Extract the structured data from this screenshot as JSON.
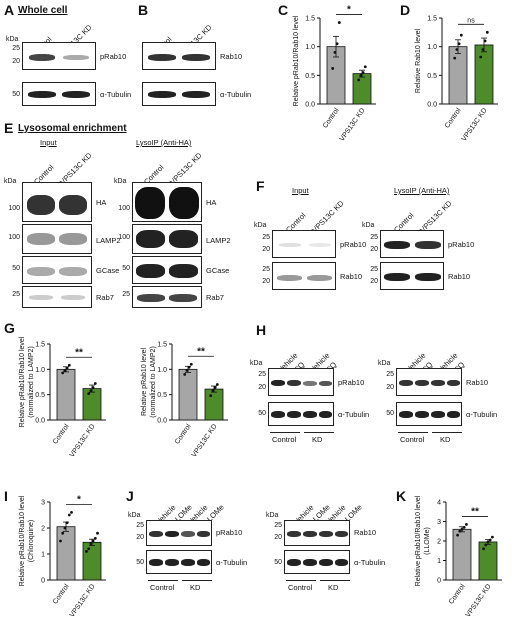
{
  "panels": {
    "A": {
      "letter": "A",
      "title": "Whole cell",
      "lanes": [
        "Control",
        "VPS13C KD"
      ],
      "kda_label": "kDa",
      "blots": [
        {
          "markers": [
            "25",
            "20"
          ],
          "label": "pRab10"
        },
        {
          "markers": [
            "50"
          ],
          "label": "α-Tubulin"
        }
      ]
    },
    "B": {
      "letter": "B",
      "lanes": [
        "Control",
        "VPS13C KD"
      ],
      "blots": [
        {
          "label": "Rab10"
        },
        {
          "label": "α-Tubulin"
        }
      ]
    },
    "C": {
      "letter": "C",
      "ylabel": "Relative pRab10/Rab10 level",
      "sig": "*"
    },
    "D": {
      "letter": "D",
      "ylabel": "Relative Rab10 level",
      "sig": "ns"
    },
    "E": {
      "letter": "E",
      "title": "Lysosomal enrichment",
      "input_title": "Input",
      "ip_title": "LysoIP (Anti-HA)",
      "lanes": [
        "Control",
        "VPS13C KD"
      ],
      "kda_label": "kDa",
      "blots": [
        {
          "marker": "100",
          "label": "HA"
        },
        {
          "marker": "100",
          "label": "LAMP2"
        },
        {
          "marker": "50",
          "label": "GCase"
        },
        {
          "marker": "25",
          "label": "Rab7"
        }
      ]
    },
    "F": {
      "letter": "F",
      "input_title": "Input",
      "ip_title": "LysoIP (Anti-HA)",
      "lanes": [
        "Control",
        "VPS13C KD"
      ],
      "kda_label": "kDa",
      "blots": [
        {
          "markers": [
            "25",
            "20"
          ],
          "label": "pRab10"
        },
        {
          "markers": [
            "25",
            "20"
          ],
          "label": "Rab10"
        }
      ]
    },
    "G": {
      "letter": "G",
      "ylabel1": "Relative pRab10/Rab10 level",
      "ylabel1b": "(normalized to LAMP2)",
      "ylabel2": "Relative pRab10 level",
      "ylabel2b": "(normalized to LAMP2)",
      "sig": "**"
    },
    "H": {
      "letter": "H",
      "lanes": [
        "Vehicle",
        "CQ",
        "Vehicle",
        "CQ"
      ],
      "groups": [
        "Control",
        "KD"
      ],
      "kda_label": "kDa",
      "blots1": [
        {
          "markers": [
            "25",
            "20"
          ],
          "label": "pRab10"
        },
        {
          "markers": [
            "50"
          ],
          "label": "α-Tubulin"
        }
      ],
      "blots2": [
        {
          "markers": [
            "25",
            "20"
          ],
          "label": "Rab10"
        },
        {
          "markers": [
            "50"
          ],
          "label": "α-Tubulin"
        }
      ]
    },
    "I": {
      "letter": "I",
      "ylabel": "Relative pRab10/Rab10 level",
      "ylabel_b": "(Chloroquine)",
      "sig": "*"
    },
    "J": {
      "letter": "J",
      "lanes": [
        "Vehicle",
        "LLOMe",
        "Vehicle",
        "LLOMe"
      ],
      "groups": [
        "Control",
        "KD"
      ],
      "kda_label": "kDa",
      "blots1": [
        {
          "markers": [
            "25",
            "20"
          ],
          "label": "pRab10"
        },
        {
          "markers": [
            "50"
          ],
          "label": "α-Tubulin"
        }
      ],
      "blots2": [
        {
          "markers": [
            "25",
            "20"
          ],
          "label": "Rab10"
        },
        {
          "markers": [
            "50"
          ],
          "label": "α-Tubulin"
        }
      ]
    },
    "K": {
      "letter": "K",
      "ylabel": "Relative pRab10/Rab10 level",
      "ylabel_b": "(LLOMe)",
      "sig": "**"
    }
  },
  "colors": {
    "control": "#a6a6a6",
    "kd": "#4e8b2a"
  },
  "chart_data": [
    {
      "id": "C",
      "type": "bar",
      "categories": [
        "Control",
        "VPS13C KD"
      ],
      "values": [
        1.0,
        0.53
      ],
      "errors": [
        0.18,
        0.06
      ],
      "points": [
        [
          0.62,
          0.9,
          1.05,
          1.42
        ],
        [
          0.42,
          0.5,
          0.55,
          0.65
        ]
      ],
      "ylim": [
        0,
        1.5
      ],
      "yticks": [
        "0.0",
        "0.5",
        "1.0",
        "1.5"
      ],
      "ytick_values": [
        0,
        0.5,
        1.0,
        1.5
      ],
      "ylabel": "Relative pRab10/Rab10 level",
      "sig": "*"
    },
    {
      "id": "D",
      "type": "bar",
      "categories": [
        "Control",
        "VPS13C KD"
      ],
      "values": [
        1.0,
        1.03
      ],
      "errors": [
        0.12,
        0.12
      ],
      "points": [
        [
          0.8,
          0.95,
          1.05,
          1.2
        ],
        [
          0.82,
          0.95,
          1.1,
          1.25
        ]
      ],
      "ylim": [
        0,
        1.5
      ],
      "yticks": [
        "0.0",
        "0.5",
        "1.0",
        "1.5"
      ],
      "ytick_values": [
        0,
        0.5,
        1.0,
        1.5
      ],
      "ylabel": "Relative Rab10 level",
      "sig": "ns"
    },
    {
      "id": "G1",
      "type": "bar",
      "categories": [
        "Control",
        "VPS13C KD"
      ],
      "values": [
        1.0,
        0.62
      ],
      "errors": [
        0.05,
        0.07
      ],
      "points": [
        [
          0.93,
          0.98,
          1.02,
          1.08
        ],
        [
          0.52,
          0.58,
          0.64,
          0.72
        ]
      ],
      "ylim": [
        0,
        1.5
      ],
      "yticks": [
        "0.0",
        "0.5",
        "1.0",
        "1.5"
      ],
      "ytick_values": [
        0,
        0.5,
        1.0,
        1.5
      ],
      "ylabel": "Relative pRab10/Rab10 level",
      "sig": "**"
    },
    {
      "id": "G2",
      "type": "bar",
      "categories": [
        "Control",
        "VPS13C KD"
      ],
      "values": [
        1.0,
        0.61
      ],
      "errors": [
        0.06,
        0.06
      ],
      "points": [
        [
          0.9,
          0.98,
          1.04,
          1.1
        ],
        [
          0.48,
          0.58,
          0.64,
          0.7
        ]
      ],
      "ylim": [
        0,
        1.5
      ],
      "yticks": [
        "0.0",
        "0.5",
        "1.0",
        "1.5"
      ],
      "ytick_values": [
        0,
        0.5,
        1.0,
        1.5
      ],
      "ylabel": "Relative pRab10 level",
      "sig": "**"
    },
    {
      "id": "I",
      "type": "bar",
      "categories": [
        "Control",
        "VPS13C KD"
      ],
      "values": [
        2.05,
        1.45
      ],
      "errors": [
        0.18,
        0.12
      ],
      "points": [
        [
          1.5,
          1.8,
          2.0,
          2.2,
          2.5,
          2.6
        ],
        [
          1.1,
          1.2,
          1.4,
          1.5,
          1.6,
          1.8
        ]
      ],
      "ylim": [
        0,
        3
      ],
      "yticks": [
        "0",
        "1",
        "2",
        "3"
      ],
      "ytick_values": [
        0,
        1,
        2,
        3
      ],
      "ylabel": "Relative pRab10/Rab10 level",
      "sig": "*"
    },
    {
      "id": "K",
      "type": "bar",
      "categories": [
        "Control",
        "VPS13C KD"
      ],
      "values": [
        2.6,
        1.95
      ],
      "errors": [
        0.13,
        0.12
      ],
      "points": [
        [
          2.3,
          2.5,
          2.6,
          2.7,
          2.85
        ],
        [
          1.6,
          1.8,
          1.95,
          2.05,
          2.2
        ]
      ],
      "ylim": [
        0,
        4
      ],
      "yticks": [
        "0",
        "1",
        "2",
        "3",
        "4"
      ],
      "ytick_values": [
        0,
        1,
        2,
        3,
        4
      ],
      "ylabel": "Relative pRab10/Rab10 level",
      "sig": "**"
    }
  ]
}
